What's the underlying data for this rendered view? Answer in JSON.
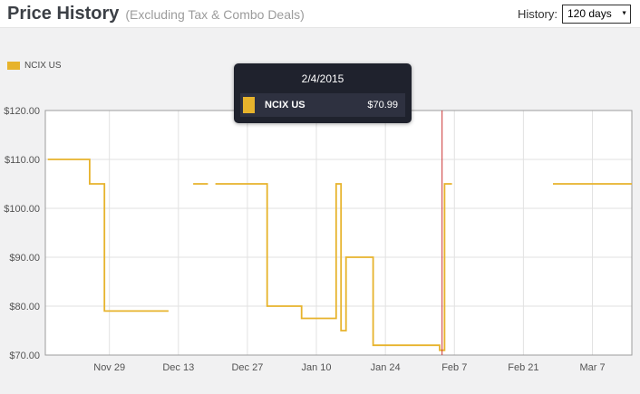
{
  "header": {
    "title": "Price History",
    "subtitle": "(Excluding Tax & Combo Deals)",
    "history_label": "History:",
    "history_value": "120 days"
  },
  "legend": {
    "items": [
      {
        "label": "NCIX US",
        "color": "#e7b32c"
      }
    ]
  },
  "tooltip": {
    "date": "2/4/2015",
    "series": "NCIX US",
    "price": "$70.99",
    "swatch_color": "#e7b32c"
  },
  "chart_data": {
    "type": "line",
    "line_style": "step",
    "title": "Price History (Excluding Tax & Combo Deals)",
    "x_unit": "days from left edge of 120-day window (0 ≈ Nov 16, tick spacing 14 days)",
    "xlim": [
      0,
      119
    ],
    "ylim": [
      70,
      120
    ],
    "grid": true,
    "grid_color": "#e2e2e2",
    "border_color": "#9c9c9c",
    "axis_label_color": "#545454",
    "legend_position": "top-left-outside",
    "y_ticks": [
      {
        "value": 70,
        "label": "$70.00"
      },
      {
        "value": 80,
        "label": "$80.00"
      },
      {
        "value": 90,
        "label": "$90.00"
      },
      {
        "value": 100,
        "label": "$100.00"
      },
      {
        "value": 110,
        "label": "$110.00"
      },
      {
        "value": 120,
        "label": "$120.00"
      }
    ],
    "x_ticks": [
      {
        "day": 13,
        "label": "Nov 29"
      },
      {
        "day": 27,
        "label": "Dec 13"
      },
      {
        "day": 41,
        "label": "Dec 27"
      },
      {
        "day": 55,
        "label": "Jan 10"
      },
      {
        "day": 69,
        "label": "Jan 24"
      },
      {
        "day": 83,
        "label": "Feb 7"
      },
      {
        "day": 97,
        "label": "Feb 21"
      },
      {
        "day": 111,
        "label": "Mar 7"
      }
    ],
    "series": [
      {
        "name": "NCIX US",
        "color": "#e7b32c",
        "segments": [
          [
            [
              0.5,
              110
            ],
            [
              9,
              110
            ],
            [
              9,
              105
            ],
            [
              12,
              105
            ],
            [
              12,
              79
            ],
            [
              25,
              79
            ]
          ],
          [
            [
              30,
              105
            ],
            [
              33,
              105
            ]
          ],
          [
            [
              34.5,
              105
            ],
            [
              45,
              105
            ],
            [
              45,
              80
            ],
            [
              52,
              80
            ],
            [
              52,
              77.5
            ],
            [
              59,
              77.5
            ],
            [
              59,
              105
            ],
            [
              60,
              105
            ],
            [
              60,
              75
            ],
            [
              61,
              75
            ],
            [
              61,
              90
            ],
            [
              66.5,
              90
            ],
            [
              66.5,
              72
            ],
            [
              80,
              72
            ],
            [
              80,
              70.99
            ],
            [
              81,
              70.99
            ],
            [
              81,
              105
            ],
            [
              82.5,
              105
            ]
          ],
          [
            [
              103,
              105
            ],
            [
              119,
              105
            ]
          ]
        ]
      }
    ],
    "crosshair": {
      "day": 80.5,
      "color": "#cc3333",
      "date": "2/4/2015",
      "value": 70.99
    }
  }
}
